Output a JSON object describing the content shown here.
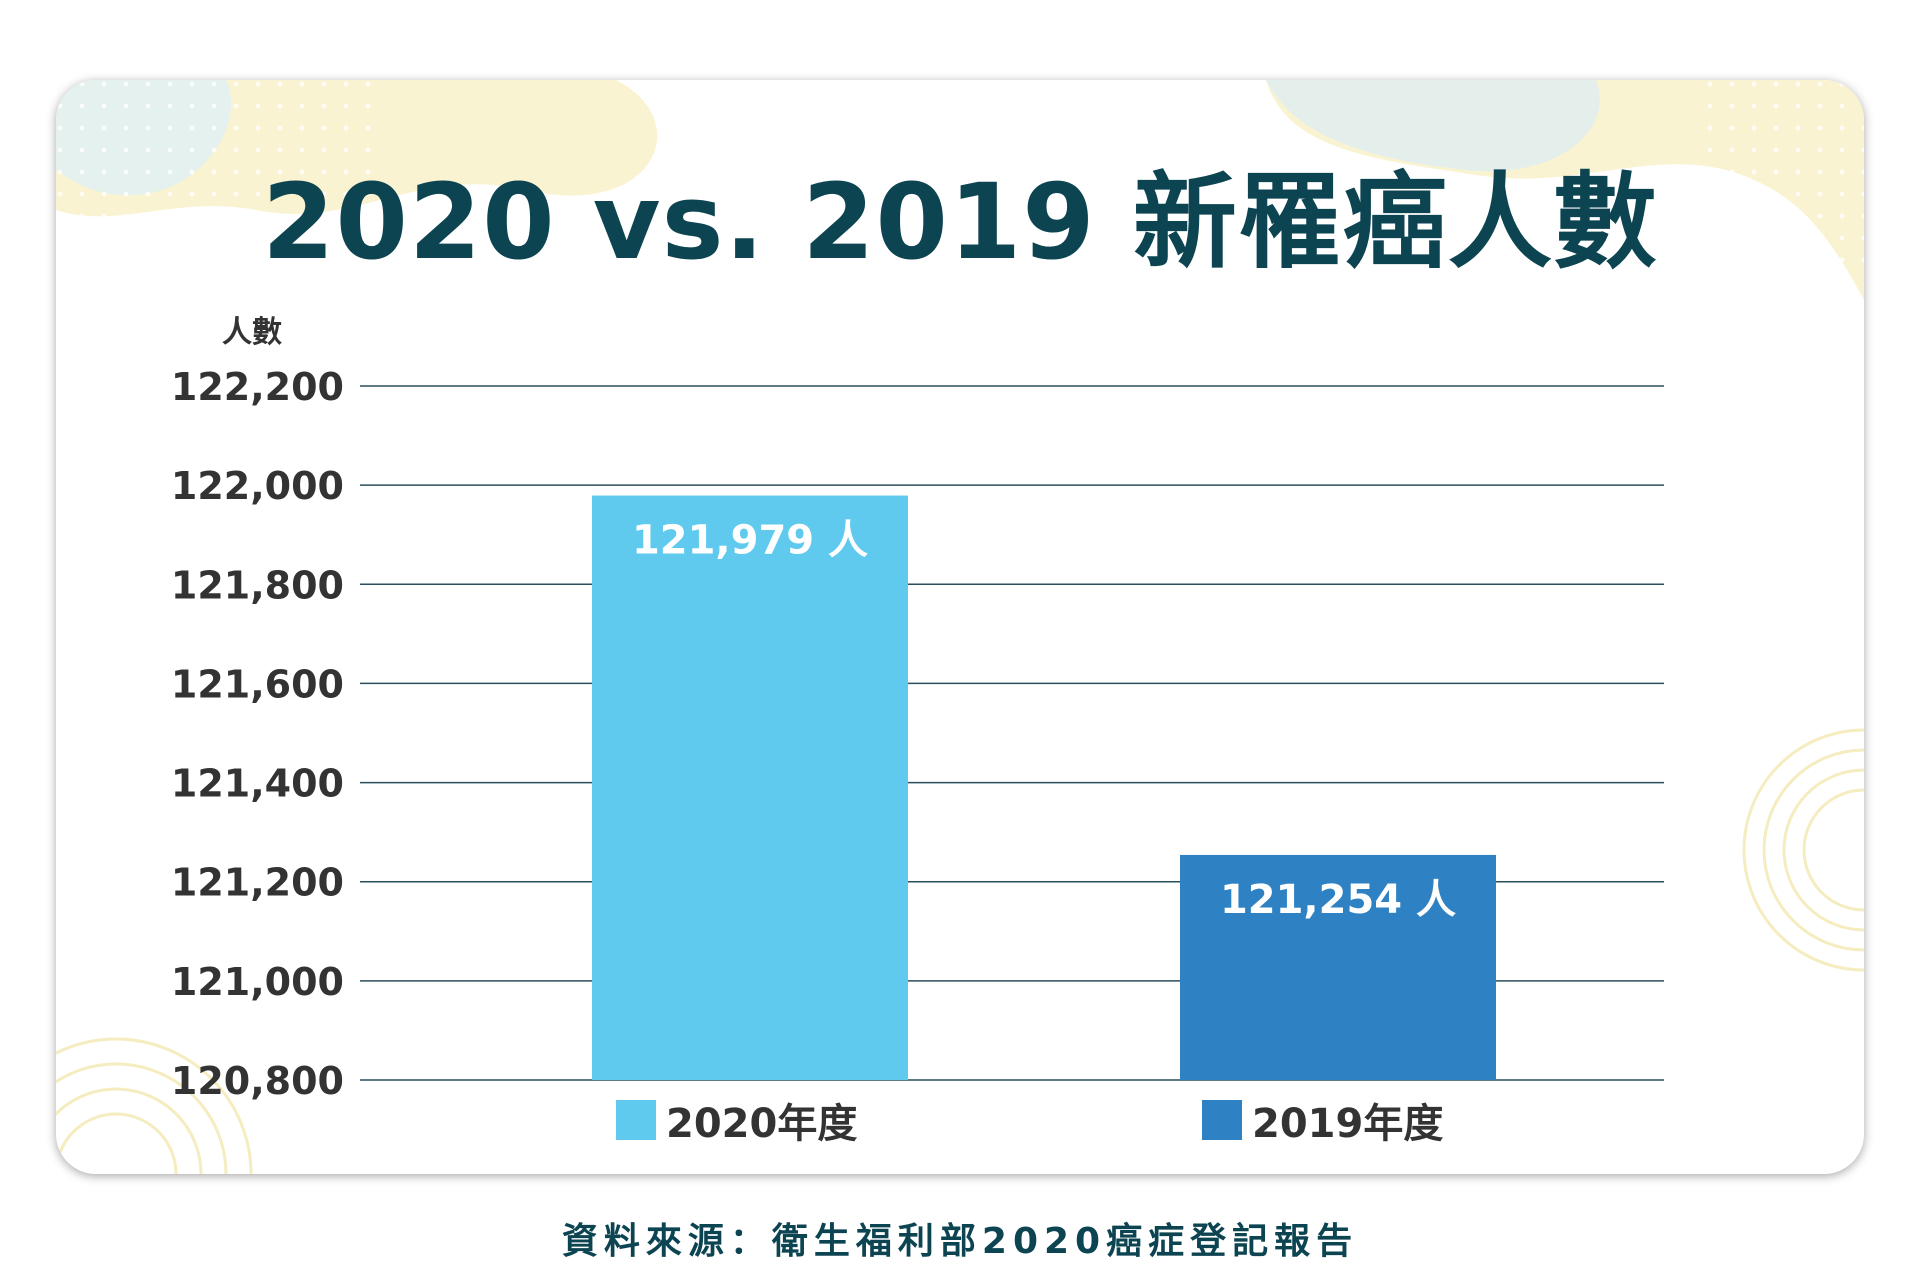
{
  "title": "2020 vs. 2019 新罹癌人數",
  "source": "資料來源：衛生福利部2020癌症登記報告",
  "colors": {
    "title": "#0d4452",
    "bar_2020": "#5fcaee",
    "bar_2019": "#2e82c4",
    "grid": "#2a4f5c",
    "axis_text": "#333333"
  },
  "chart_data": {
    "type": "bar",
    "title": "2020 vs. 2019 新罹癌人數",
    "ylabel": "人數",
    "xlabel": "",
    "ylim": [
      120800,
      122200
    ],
    "yticks": [
      120800,
      121000,
      121200,
      121400,
      121600,
      121800,
      122000,
      122200
    ],
    "ytick_labels": [
      "120,800",
      "121,000",
      "121,200",
      "121,400",
      "121,600",
      "121,800",
      "122,000",
      "122,200"
    ],
    "categories": [
      "2020年度",
      "2019年度"
    ],
    "values": [
      121979,
      121254
    ],
    "data_labels": [
      "121,979 人",
      "121,254 人"
    ],
    "grid": true,
    "legend": "bottom"
  }
}
